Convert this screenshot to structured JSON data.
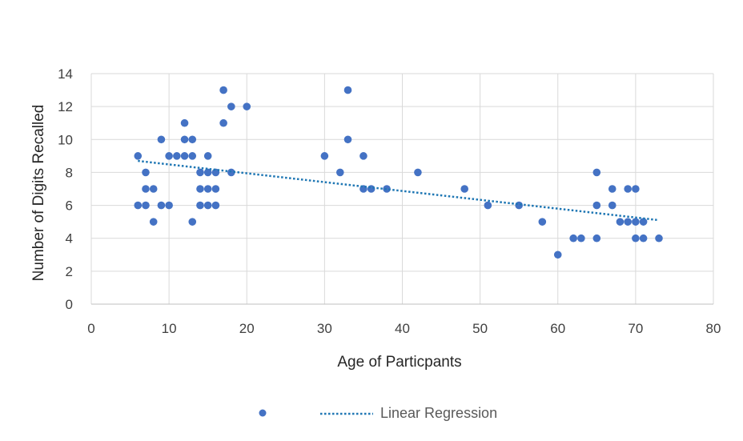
{
  "chart_data": {
    "type": "scatter",
    "title": "",
    "xlabel": "Age of Particpants",
    "ylabel": "Number of Digits Recalled",
    "xlim": [
      0,
      80
    ],
    "ylim": [
      0,
      14
    ],
    "xticks": [
      0,
      10,
      20,
      30,
      40,
      50,
      60,
      70,
      80
    ],
    "yticks": [
      0,
      2,
      4,
      6,
      8,
      10,
      12,
      14
    ],
    "grid": true,
    "legend_position": "bottom",
    "colors": {
      "points": "#4472C4",
      "trendline": "#1F77B4",
      "grid": "#D9D9D9"
    },
    "series": [
      {
        "name": "",
        "points": [
          [
            6,
            9
          ],
          [
            6,
            6
          ],
          [
            7,
            8
          ],
          [
            7,
            7
          ],
          [
            7,
            6
          ],
          [
            8,
            7
          ],
          [
            8,
            5
          ],
          [
            9,
            10
          ],
          [
            9,
            6
          ],
          [
            10,
            9
          ],
          [
            10,
            6
          ],
          [
            11,
            9
          ],
          [
            12,
            11
          ],
          [
            12,
            10
          ],
          [
            12,
            9
          ],
          [
            13,
            10
          ],
          [
            13,
            9
          ],
          [
            13,
            5
          ],
          [
            14,
            8
          ],
          [
            14,
            7
          ],
          [
            14,
            6
          ],
          [
            15,
            9
          ],
          [
            15,
            8
          ],
          [
            15,
            7
          ],
          [
            15,
            6
          ],
          [
            16,
            8
          ],
          [
            16,
            7
          ],
          [
            16,
            6
          ],
          [
            17,
            13
          ],
          [
            17,
            11
          ],
          [
            18,
            12
          ],
          [
            18,
            8
          ],
          [
            20,
            12
          ],
          [
            30,
            9
          ],
          [
            32,
            8
          ],
          [
            33,
            13
          ],
          [
            33,
            10
          ],
          [
            35,
            9
          ],
          [
            35,
            7
          ],
          [
            36,
            7
          ],
          [
            38,
            7
          ],
          [
            42,
            8
          ],
          [
            48,
            7
          ],
          [
            51,
            6
          ],
          [
            55,
            6
          ],
          [
            58,
            5
          ],
          [
            60,
            3
          ],
          [
            62,
            4
          ],
          [
            63,
            4
          ],
          [
            65,
            8
          ],
          [
            65,
            6
          ],
          [
            65,
            4
          ],
          [
            67,
            7
          ],
          [
            67,
            6
          ],
          [
            68,
            5
          ],
          [
            69,
            7
          ],
          [
            69,
            5
          ],
          [
            70,
            7
          ],
          [
            70,
            5
          ],
          [
            70,
            4
          ],
          [
            71,
            5
          ],
          [
            71,
            4
          ],
          [
            73,
            4
          ]
        ]
      },
      {
        "name": "Linear Regression",
        "type": "trendline",
        "points": [
          [
            6,
            8.7
          ],
          [
            73,
            5.1
          ]
        ]
      }
    ]
  }
}
